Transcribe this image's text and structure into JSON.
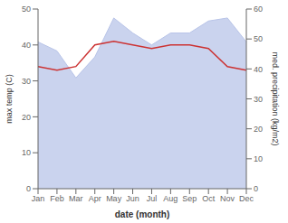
{
  "chart_data": {
    "type": "line",
    "categories": [
      "Jan",
      "Feb",
      "Mar",
      "Apr",
      "May",
      "Jun",
      "Jul",
      "Aug",
      "Sep",
      "Oct",
      "Nov",
      "Dec"
    ],
    "series": [
      {
        "type": "area",
        "axis": "y2",
        "color": "#b8c4e8",
        "values": [
          49,
          46,
          37,
          44,
          57,
          52,
          48,
          52,
          52,
          56,
          57,
          49
        ]
      },
      {
        "type": "line",
        "axis": "y",
        "color": "#cc3333",
        "values": [
          34,
          33,
          34,
          40,
          41,
          40,
          39,
          40,
          40,
          39,
          34,
          33
        ]
      }
    ],
    "xlabel": "date (month)",
    "ylabel": "max temp (C)",
    "y2label": "med. precipitation (kg/m2)",
    "ylim": [
      0,
      50
    ],
    "yticks": [
      0,
      10,
      20,
      30,
      40,
      50
    ],
    "y2lim": [
      0,
      60
    ],
    "y2ticks": [
      0,
      10,
      20,
      30,
      40,
      50,
      60
    ],
    "grid": false
  }
}
